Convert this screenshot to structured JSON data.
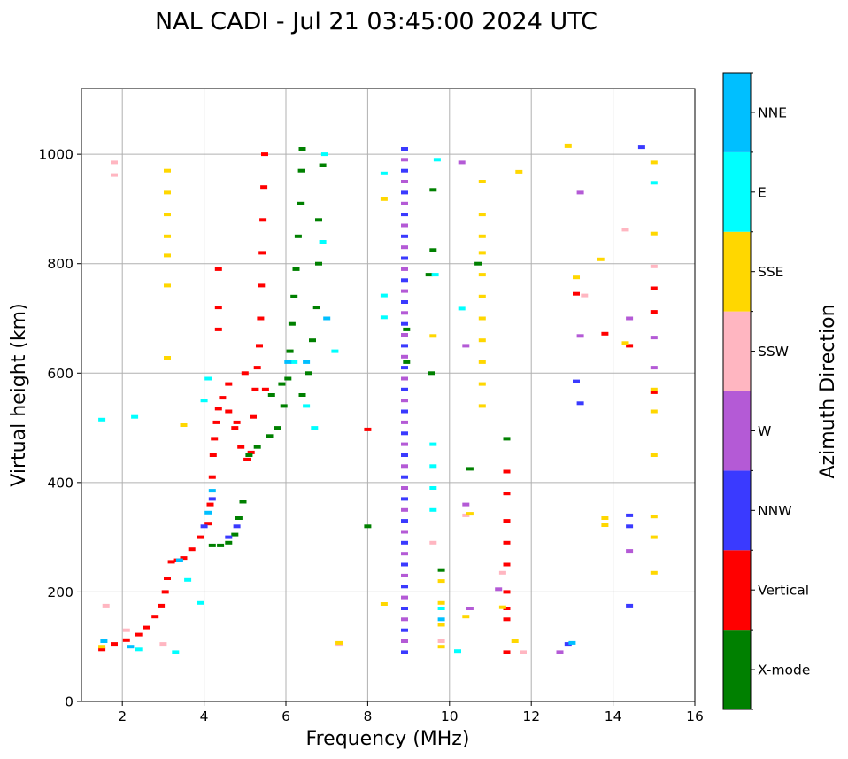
{
  "chart_data": {
    "type": "scatter",
    "title": "NAL CADI - Jul 21 03:45:00 2024 UTC",
    "xlabel": "Frequency (MHz)",
    "ylabel": "Virtual height (km)",
    "xlim": [
      1,
      16
    ],
    "ylim": [
      0,
      1120
    ],
    "xticks": [
      2,
      4,
      6,
      8,
      10,
      12,
      14,
      16
    ],
    "yticks": [
      0,
      200,
      400,
      600,
      800,
      1000
    ],
    "grid": true,
    "colorbar": {
      "title": "Azimuth Direction",
      "position": "right",
      "categories": [
        {
          "name": "X-mode",
          "color": "#008000"
        },
        {
          "name": "Vertical",
          "color": "#ff0000"
        },
        {
          "name": "NNW",
          "color": "#3a3aff"
        },
        {
          "name": "W",
          "color": "#b45ad6"
        },
        {
          "name": "SSW",
          "color": "#ffb6c1"
        },
        {
          "name": "SSE",
          "color": "#ffd700"
        },
        {
          "name": "E",
          "color": "#00ffff"
        },
        {
          "name": "NNE",
          "color": "#00bfff"
        }
      ]
    },
    "series": [
      {
        "name": "Vertical",
        "points": [
          [
            1.5,
            95
          ],
          [
            1.8,
            105
          ],
          [
            2.1,
            112
          ],
          [
            2.4,
            122
          ],
          [
            2.6,
            135
          ],
          [
            2.8,
            155
          ],
          [
            2.95,
            175
          ],
          [
            3.05,
            200
          ],
          [
            3.1,
            225
          ],
          [
            3.2,
            255
          ],
          [
            3.35,
            258
          ],
          [
            3.5,
            262
          ],
          [
            3.7,
            278
          ],
          [
            3.9,
            300
          ],
          [
            4.1,
            325
          ],
          [
            4.15,
            360
          ],
          [
            4.2,
            410
          ],
          [
            4.22,
            450
          ],
          [
            4.25,
            480
          ],
          [
            4.3,
            510
          ],
          [
            4.35,
            535
          ],
          [
            4.45,
            555
          ],
          [
            4.6,
            530
          ],
          [
            4.75,
            500
          ],
          [
            4.9,
            465
          ],
          [
            5.05,
            442
          ],
          [
            5.15,
            455
          ],
          [
            5.2,
            520
          ],
          [
            5.25,
            570
          ],
          [
            5.3,
            610
          ],
          [
            5.35,
            650
          ],
          [
            5.38,
            700
          ],
          [
            5.4,
            760
          ],
          [
            5.42,
            820
          ],
          [
            5.44,
            880
          ],
          [
            5.46,
            940
          ],
          [
            5.48,
            1000
          ],
          [
            4.35,
            720
          ],
          [
            4.35,
            680
          ],
          [
            4.35,
            790
          ],
          [
            4.6,
            580
          ],
          [
            4.8,
            510
          ],
          [
            5.0,
            600
          ],
          [
            5.5,
            570
          ],
          [
            8.0,
            497
          ],
          [
            11.4,
            420
          ],
          [
            11.4,
            380
          ],
          [
            11.4,
            330
          ],
          [
            11.4,
            290
          ],
          [
            11.4,
            250
          ],
          [
            11.4,
            200
          ],
          [
            11.4,
            170
          ],
          [
            11.4,
            150
          ],
          [
            11.4,
            90
          ],
          [
            13.1,
            745
          ],
          [
            14.4,
            650
          ],
          [
            15.0,
            755
          ],
          [
            15.0,
            712
          ],
          [
            15.0,
            565
          ],
          [
            13.8,
            672
          ]
        ]
      },
      {
        "name": "X-mode",
        "points": [
          [
            4.2,
            285
          ],
          [
            4.4,
            285
          ],
          [
            4.6,
            290
          ],
          [
            4.75,
            305
          ],
          [
            4.85,
            335
          ],
          [
            4.95,
            365
          ],
          [
            5.1,
            450
          ],
          [
            5.3,
            465
          ],
          [
            5.6,
            485
          ],
          [
            5.8,
            500
          ],
          [
            5.95,
            540
          ],
          [
            6.05,
            590
          ],
          [
            6.1,
            640
          ],
          [
            6.15,
            690
          ],
          [
            6.2,
            740
          ],
          [
            6.25,
            790
          ],
          [
            6.3,
            850
          ],
          [
            6.35,
            910
          ],
          [
            6.38,
            970
          ],
          [
            6.4,
            1010
          ],
          [
            5.65,
            560
          ],
          [
            5.9,
            580
          ],
          [
            6.4,
            560
          ],
          [
            6.55,
            600
          ],
          [
            6.65,
            660
          ],
          [
            6.75,
            720
          ],
          [
            6.8,
            800
          ],
          [
            6.8,
            880
          ],
          [
            6.9,
            980
          ],
          [
            10.5,
            425
          ],
          [
            9.8,
            240
          ],
          [
            10.7,
            800
          ],
          [
            8.0,
            320
          ],
          [
            9.6,
            825
          ],
          [
            9.5,
            780
          ],
          [
            9.6,
            935
          ],
          [
            9.55,
            600
          ],
          [
            11.4,
            480
          ],
          [
            8.95,
            680
          ],
          [
            8.95,
            620
          ]
        ]
      },
      {
        "name": "NNW",
        "points": [
          [
            4.0,
            320
          ],
          [
            4.2,
            370
          ],
          [
            4.6,
            300
          ],
          [
            4.8,
            320
          ],
          [
            12.9,
            105
          ],
          [
            13.1,
            585
          ],
          [
            13.2,
            545
          ],
          [
            14.4,
            340
          ],
          [
            14.4,
            320
          ],
          [
            14.4,
            175
          ],
          [
            14.7,
            1013
          ],
          [
            8.9,
            90
          ],
          [
            8.9,
            130
          ],
          [
            8.9,
            170
          ],
          [
            8.9,
            210
          ],
          [
            8.9,
            250
          ],
          [
            8.9,
            290
          ],
          [
            8.9,
            330
          ],
          [
            8.9,
            370
          ],
          [
            8.9,
            410
          ],
          [
            8.9,
            450
          ],
          [
            8.9,
            490
          ],
          [
            8.9,
            530
          ],
          [
            8.9,
            570
          ],
          [
            8.9,
            610
          ],
          [
            8.9,
            650
          ],
          [
            8.9,
            690
          ],
          [
            8.9,
            730
          ],
          [
            8.9,
            770
          ],
          [
            8.9,
            810
          ],
          [
            8.9,
            850
          ],
          [
            8.9,
            890
          ],
          [
            8.9,
            930
          ],
          [
            8.9,
            970
          ],
          [
            8.9,
            1010
          ]
        ]
      },
      {
        "name": "W",
        "points": [
          [
            8.9,
            110
          ],
          [
            8.9,
            150
          ],
          [
            8.9,
            190
          ],
          [
            8.9,
            230
          ],
          [
            8.9,
            270
          ],
          [
            8.9,
            310
          ],
          [
            8.9,
            350
          ],
          [
            8.9,
            390
          ],
          [
            8.9,
            430
          ],
          [
            8.9,
            470
          ],
          [
            8.9,
            510
          ],
          [
            8.9,
            550
          ],
          [
            8.9,
            590
          ],
          [
            8.9,
            630
          ],
          [
            8.9,
            670
          ],
          [
            8.9,
            710
          ],
          [
            8.9,
            750
          ],
          [
            8.9,
            790
          ],
          [
            8.9,
            830
          ],
          [
            8.9,
            870
          ],
          [
            8.9,
            910
          ],
          [
            8.9,
            950
          ],
          [
            8.9,
            990
          ],
          [
            12.7,
            90
          ],
          [
            14.4,
            275
          ],
          [
            14.4,
            700
          ],
          [
            13.2,
            668
          ],
          [
            13.2,
            930
          ],
          [
            15.0,
            665
          ],
          [
            15.0,
            610
          ],
          [
            10.4,
            360
          ],
          [
            10.4,
            650
          ],
          [
            11.2,
            205
          ],
          [
            10.5,
            170
          ],
          [
            10.3,
            985
          ]
        ]
      },
      {
        "name": "SSW",
        "points": [
          [
            1.8,
            985
          ],
          [
            1.8,
            962
          ],
          [
            1.6,
            175
          ],
          [
            2.1,
            130
          ],
          [
            3.0,
            105
          ],
          [
            7.3,
            105
          ],
          [
            9.6,
            290
          ],
          [
            10.4,
            340
          ],
          [
            11.3,
            235
          ],
          [
            14.3,
            862
          ],
          [
            15.0,
            795
          ],
          [
            9.8,
            110
          ],
          [
            11.8,
            90
          ],
          [
            13.3,
            742
          ]
        ]
      },
      {
        "name": "SSE",
        "points": [
          [
            3.1,
            815
          ],
          [
            3.1,
            850
          ],
          [
            3.1,
            890
          ],
          [
            3.1,
            930
          ],
          [
            3.1,
            970
          ],
          [
            3.1,
            760
          ],
          [
            3.1,
            628
          ],
          [
            3.5,
            505
          ],
          [
            1.5,
            100
          ],
          [
            7.3,
            107
          ],
          [
            10.8,
            540
          ],
          [
            10.8,
            580
          ],
          [
            10.8,
            620
          ],
          [
            10.8,
            660
          ],
          [
            10.8,
            700
          ],
          [
            10.8,
            740
          ],
          [
            10.8,
            780
          ],
          [
            10.8,
            820
          ],
          [
            10.8,
            850
          ],
          [
            10.8,
            890
          ],
          [
            10.8,
            950
          ],
          [
            9.8,
            100
          ],
          [
            9.8,
            140
          ],
          [
            9.8,
            180
          ],
          [
            9.8,
            220
          ],
          [
            15.0,
            985
          ],
          [
            15.0,
            855
          ],
          [
            15.0,
            530
          ],
          [
            15.0,
            450
          ],
          [
            15.0,
            338
          ],
          [
            15.0,
            300
          ],
          [
            15.0,
            235
          ],
          [
            13.7,
            808
          ],
          [
            13.1,
            775
          ],
          [
            12.9,
            1015
          ],
          [
            11.7,
            968
          ],
          [
            11.6,
            110
          ],
          [
            11.3,
            172
          ],
          [
            8.4,
            178
          ],
          [
            8.4,
            918
          ],
          [
            10.4,
            155
          ],
          [
            9.6,
            668
          ],
          [
            14.3,
            655
          ],
          [
            15.0,
            570
          ],
          [
            13.8,
            335
          ],
          [
            13.8,
            322
          ],
          [
            10.5,
            343
          ]
        ]
      },
      {
        "name": "E",
        "points": [
          [
            2.3,
            520
          ],
          [
            2.4,
            95
          ],
          [
            3.3,
            90
          ],
          [
            3.6,
            222
          ],
          [
            3.9,
            180
          ],
          [
            4.0,
            550
          ],
          [
            4.1,
            590
          ],
          [
            6.2,
            620
          ],
          [
            6.5,
            540
          ],
          [
            6.7,
            500
          ],
          [
            6.9,
            840
          ],
          [
            6.95,
            1000
          ],
          [
            7.2,
            640
          ],
          [
            8.4,
            965
          ],
          [
            8.4,
            742
          ],
          [
            8.4,
            702
          ],
          [
            9.6,
            470
          ],
          [
            9.6,
            430
          ],
          [
            9.6,
            390
          ],
          [
            9.6,
            350
          ],
          [
            9.7,
            990
          ],
          [
            9.8,
            170
          ],
          [
            10.2,
            92
          ],
          [
            10.3,
            718
          ],
          [
            15.0,
            948
          ],
          [
            1.5,
            515
          ],
          [
            9.65,
            780
          ]
        ]
      },
      {
        "name": "NNE",
        "points": [
          [
            1.55,
            110
          ],
          [
            2.2,
            100
          ],
          [
            3.4,
            258
          ],
          [
            4.1,
            345
          ],
          [
            4.2,
            385
          ],
          [
            6.05,
            620
          ],
          [
            6.5,
            620
          ],
          [
            7.0,
            700
          ],
          [
            13.0,
            107
          ],
          [
            9.8,
            150
          ]
        ]
      }
    ]
  }
}
